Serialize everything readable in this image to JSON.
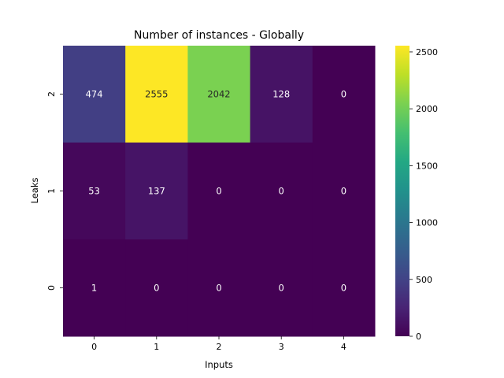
{
  "chart_data": {
    "type": "heatmap",
    "title": "Number of instances - Globally",
    "xlabel": "Inputs",
    "ylabel": "Leaks",
    "x_categories": [
      "0",
      "1",
      "2",
      "3",
      "4"
    ],
    "y_categories": [
      "2",
      "1",
      "0"
    ],
    "values": [
      [
        474,
        2555,
        2042,
        128,
        0
      ],
      [
        53,
        137,
        0,
        0,
        0
      ],
      [
        1,
        0,
        0,
        0,
        0
      ]
    ],
    "colormap": "viridis",
    "vmin": 0,
    "vmax": 2555,
    "colorbar_ticks": [
      0,
      500,
      1000,
      1500,
      2000,
      2500
    ],
    "grid": false
  }
}
